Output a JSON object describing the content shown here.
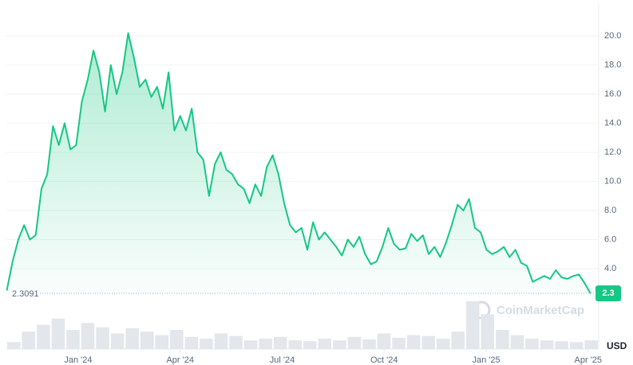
{
  "chart_data": {
    "type": "line",
    "currency": "USD",
    "watermark": "CoinMarketCap",
    "open_price": 2.3091,
    "xlim": [
      -2.3,
      15.31
    ],
    "ylim": [
      2.2,
      22.2
    ],
    "grid": true,
    "xticks": [
      {
        "value": 0,
        "label": "Jan '24"
      },
      {
        "value": 3,
        "label": "Apr '24"
      },
      {
        "value": 6,
        "label": "Jul '24"
      },
      {
        "value": 9,
        "label": "Oct '24"
      },
      {
        "value": 12,
        "label": "Jan '25"
      },
      {
        "value": 15,
        "label": "Apr '25"
      }
    ],
    "yticks": [
      {
        "value": 4,
        "label": "4.0"
      },
      {
        "value": 6,
        "label": "6.0"
      },
      {
        "value": 8,
        "label": "8.0"
      },
      {
        "value": 10,
        "label": "10.0"
      },
      {
        "value": 12,
        "label": "12.0"
      },
      {
        "value": 14,
        "label": "14.0"
      },
      {
        "value": 16,
        "label": "16.0"
      },
      {
        "value": 18,
        "label": "18.0"
      },
      {
        "value": 20,
        "label": "20.0"
      }
    ],
    "x": [
      -2.1,
      -1.93,
      -1.76,
      -1.59,
      -1.42,
      -1.25,
      -1.08,
      -0.91,
      -0.74,
      -0.57,
      -0.4,
      -0.23,
      -0.06,
      0.11,
      0.28,
      0.45,
      0.62,
      0.79,
      0.96,
      1.13,
      1.3,
      1.47,
      1.64,
      1.81,
      1.98,
      2.15,
      2.32,
      2.49,
      2.66,
      2.83,
      3.0,
      3.17,
      3.34,
      3.51,
      3.68,
      3.85,
      4.02,
      4.19,
      4.36,
      4.53,
      4.7,
      4.87,
      5.04,
      5.21,
      5.38,
      5.55,
      5.72,
      5.89,
      6.06,
      6.23,
      6.4,
      6.57,
      6.74,
      6.91,
      7.08,
      7.25,
      7.42,
      7.59,
      7.76,
      7.93,
      8.1,
      8.27,
      8.44,
      8.61,
      8.78,
      8.95,
      9.12,
      9.29,
      9.46,
      9.63,
      9.8,
      9.97,
      10.14,
      10.31,
      10.48,
      10.65,
      10.82,
      10.99,
      11.16,
      11.33,
      11.5,
      11.67,
      11.84,
      12.01,
      12.18,
      12.35,
      12.52,
      12.69,
      12.86,
      13.03,
      13.2,
      13.37,
      13.54,
      13.71,
      13.88,
      14.05,
      14.22,
      14.39,
      14.56,
      14.73,
      14.9,
      15.07
    ],
    "series": [
      {
        "color": "#16c784",
        "values": [
          2.5,
          4.5,
          6.0,
          7.0,
          6.0,
          6.3,
          9.5,
          10.5,
          13.8,
          12.5,
          14.0,
          12.2,
          12.5,
          15.5,
          17.0,
          19.0,
          17.5,
          14.8,
          18.0,
          16.0,
          17.5,
          20.2,
          18.5,
          16.5,
          17.0,
          15.8,
          16.5,
          15.0,
          17.5,
          13.5,
          14.5,
          13.5,
          15.0,
          12.0,
          11.5,
          9.0,
          11.2,
          12.0,
          10.8,
          10.5,
          9.8,
          9.5,
          8.5,
          9.8,
          9.0,
          11.0,
          11.8,
          10.5,
          8.5,
          7.0,
          6.5,
          6.8,
          5.3,
          7.2,
          6.0,
          6.5,
          6.0,
          5.5,
          4.9,
          6.0,
          5.5,
          6.2,
          5.0,
          4.3,
          4.5,
          5.5,
          6.8,
          5.7,
          5.3,
          5.4,
          6.4,
          5.9,
          6.3,
          5.0,
          5.5,
          4.8,
          5.8,
          7.0,
          8.4,
          8.0,
          8.8,
          6.8,
          6.5,
          5.3,
          5.0,
          5.2,
          5.5,
          4.8,
          5.3,
          4.4,
          4.2,
          3.1,
          3.3,
          3.5,
          3.3,
          3.9,
          3.4,
          3.3,
          3.5,
          3.6,
          3.0,
          2.3
        ]
      }
    ],
    "volume": {
      "color": "#e3e6ea",
      "values": [
        8,
        20,
        28,
        35,
        22,
        30,
        25,
        18,
        24,
        20,
        16,
        22,
        14,
        12,
        18,
        15,
        10,
        12,
        14,
        10,
        9,
        12,
        10,
        14,
        11,
        18,
        13,
        16,
        15,
        12,
        20,
        55,
        40,
        22,
        16,
        12,
        10,
        9,
        8,
        10
      ]
    }
  }
}
